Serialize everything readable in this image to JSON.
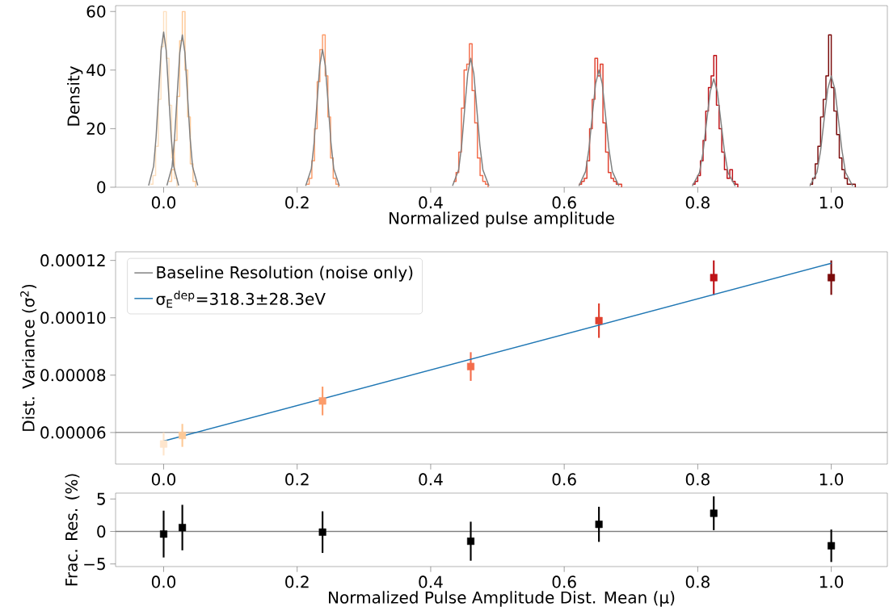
{
  "chart_data": [
    {
      "type": "line",
      "ylabel": "Density",
      "xlabel": "Normalized pulse amplitude",
      "xlim": [
        -0.072,
        1.084
      ],
      "ylim": [
        0,
        62
      ],
      "xticks": [
        {
          "value": 0,
          "label": "0.0"
        },
        {
          "value": 0.2,
          "label": "0.2"
        },
        {
          "value": 0.4,
          "label": "0.4"
        },
        {
          "value": 0.6,
          "label": "0.6"
        },
        {
          "value": 0.8,
          "label": "0.8"
        },
        {
          "value": 1.0,
          "label": "1.0"
        }
      ],
      "yticks": [
        0,
        20,
        40,
        60
      ],
      "series": [
        {
          "type": "step",
          "color": "#fde0c0",
          "x": [
            -0.02,
            -0.016,
            -0.012,
            -0.008,
            -0.004,
            0.0,
            0.004,
            0.008,
            0.012,
            0.016,
            0.02
          ],
          "values": [
            1,
            4,
            14,
            30,
            48,
            60,
            44,
            28,
            10,
            3,
            0
          ]
        },
        {
          "type": "step",
          "color": "#fdc997",
          "x": [
            0.008,
            0.012,
            0.016,
            0.02,
            0.024,
            0.028,
            0.032,
            0.036,
            0.04,
            0.044,
            0.048
          ],
          "values": [
            2,
            6,
            16,
            31,
            50,
            60,
            40,
            24,
            8,
            2,
            0
          ]
        },
        {
          "type": "step",
          "color": "#fc9d6b",
          "x": [
            0.214,
            0.218,
            0.222,
            0.226,
            0.23,
            0.234,
            0.238,
            0.242,
            0.246,
            0.25,
            0.254,
            0.258,
            0.262
          ],
          "values": [
            1,
            3,
            9,
            20,
            36,
            47,
            52,
            38,
            24,
            10,
            3,
            1,
            0
          ]
        },
        {
          "type": "step",
          "color": "#f46d4b",
          "x": [
            0.434,
            0.438,
            0.442,
            0.446,
            0.45,
            0.454,
            0.458,
            0.462,
            0.466,
            0.47,
            0.474,
            0.478,
            0.482,
            0.486
          ],
          "values": [
            2,
            5,
            12,
            27,
            40,
            42,
            49,
            33,
            22,
            10,
            4,
            2,
            1,
            0
          ]
        },
        {
          "type": "step",
          "color": "#e0402e",
          "x": [
            0.622,
            0.626,
            0.63,
            0.634,
            0.638,
            0.642,
            0.646,
            0.65,
            0.654,
            0.658,
            0.662,
            0.666,
            0.67,
            0.674,
            0.678,
            0.682,
            0.686
          ],
          "values": [
            1,
            2,
            3,
            9,
            20,
            30,
            44,
            38,
            42,
            22,
            12,
            5,
            3,
            2,
            1,
            1,
            0
          ]
        },
        {
          "type": "step",
          "color": "#bf1318",
          "x": [
            0.792,
            0.796,
            0.8,
            0.804,
            0.808,
            0.812,
            0.816,
            0.82,
            0.824,
            0.828,
            0.832,
            0.836,
            0.84,
            0.844,
            0.848,
            0.852,
            0.856,
            0.86
          ],
          "values": [
            1,
            2,
            4,
            9,
            16,
            26,
            34,
            38,
            45,
            28,
            20,
            12,
            6,
            3,
            6,
            2,
            1,
            0
          ]
        },
        {
          "type": "step",
          "color": "#7a0a0a",
          "x": [
            0.968,
            0.972,
            0.976,
            0.98,
            0.984,
            0.988,
            0.992,
            0.996,
            1.0,
            1.004,
            1.008,
            1.012,
            1.016,
            1.02,
            1.024,
            1.028,
            1.032,
            1.036
          ],
          "values": [
            1,
            3,
            8,
            14,
            24,
            30,
            38,
            52,
            34,
            26,
            18,
            10,
            6,
            3,
            1,
            1,
            1,
            0
          ]
        },
        {
          "color": "#7f7f7f",
          "x": [
            -0.0225,
            -0.015,
            -0.0113,
            -0.0075,
            -0.0038,
            0.0,
            0.0038,
            0.0075,
            0.0113,
            0.015,
            0.0225
          ],
          "values": [
            0.6,
            7.2,
            17.2,
            32.2,
            46.7,
            53,
            46.7,
            32.2,
            17.2,
            7.2,
            0.6
          ]
        },
        {
          "color": "#7f7f7f",
          "x": [
            0.0049,
            0.0126,
            0.0164,
            0.0203,
            0.0242,
            0.028,
            0.0319,
            0.0357,
            0.0396,
            0.0434,
            0.0511
          ],
          "values": [
            0.6,
            7,
            16.9,
            31.6,
            45.9,
            52,
            45.9,
            31.6,
            16.9,
            7,
            0.6
          ]
        },
        {
          "color": "#7f7f7f",
          "x": [
            0.2128,
            0.2212,
            0.2254,
            0.2296,
            0.2338,
            0.238,
            0.2422,
            0.2464,
            0.2506,
            0.2548,
            0.2632
          ],
          "values": [
            0.5,
            6.3,
            15.3,
            28.5,
            41.5,
            47,
            41.5,
            28.5,
            15.3,
            6.3,
            0.5
          ]
        },
        {
          "color": "#7f7f7f",
          "x": [
            0.4327,
            0.4418,
            0.4464,
            0.4509,
            0.4555,
            0.46,
            0.4646,
            0.4691,
            0.4737,
            0.4782,
            0.4873
          ],
          "values": [
            0.5,
            5.9,
            14.3,
            26.7,
            38.8,
            44,
            38.8,
            26.7,
            14.3,
            5.9,
            0.5
          ]
        },
        {
          "color": "#7f7f7f",
          "x": [
            0.622,
            0.632,
            0.637,
            0.642,
            0.647,
            0.652,
            0.657,
            0.662,
            0.667,
            0.672,
            0.682
          ],
          "values": [
            0.4,
            5.4,
            13,
            24.3,
            35.3,
            40,
            35.3,
            24.3,
            13,
            5.4,
            0.4
          ]
        },
        {
          "color": "#7f7f7f",
          "x": [
            0.7919,
            0.8026,
            0.808,
            0.8133,
            0.8187,
            0.824,
            0.8294,
            0.8347,
            0.8401,
            0.8454,
            0.8561
          ],
          "values": [
            0.4,
            5,
            12,
            22.5,
            32.6,
            37,
            32.6,
            22.5,
            12,
            5,
            0.4
          ]
        },
        {
          "color": "#7f7f7f",
          "x": [
            0.9679,
            0.9786,
            0.984,
            0.9893,
            0.9947,
            1.0,
            1.0054,
            1.0107,
            1.0161,
            1.0214,
            1.0321
          ],
          "values": [
            0.4,
            5.1,
            12.4,
            23.1,
            33.5,
            38,
            33.5,
            23.1,
            12.4,
            5.1,
            0.4
          ]
        }
      ]
    },
    {
      "type": "scatter",
      "ylabel": "Dist. Variance (σ$^{2}$)",
      "legend": "top left",
      "x": [
        0,
        0.028,
        0.238,
        0.46,
        0.652,
        0.824,
        1.0
      ],
      "xlim": [
        -0.072,
        1.084
      ],
      "ylim": [
        4.9e-05,
        0.000123
      ],
      "xticks": [
        {
          "value": 0,
          "label": "0.0"
        },
        {
          "value": 0.2,
          "label": "0.2"
        },
        {
          "value": 0.4,
          "label": "0.4"
        },
        {
          "value": 0.6,
          "label": "0.6"
        },
        {
          "value": 0.8,
          "label": "0.8"
        },
        {
          "value": 1.0,
          "label": "1.0"
        }
      ],
      "yticks": [
        {
          "value": 6e-05,
          "label": "0.00006"
        },
        {
          "value": 8e-05,
          "label": "0.00008"
        },
        {
          "value": 0.0001,
          "label": "0.00010"
        },
        {
          "value": 0.00012,
          "label": "0.00012"
        }
      ],
      "ref_lines": [
        {
          "axis": "y",
          "value": 6e-05,
          "label": "Baseline Resolution (noise only)",
          "color": "#7f7f7f"
        }
      ],
      "series": [
        {
          "marker": "square",
          "colors": [
            "#fee5cc",
            "#fdc997",
            "#fc9d6b",
            "#f46d4b",
            "#e0402e",
            "#bf1318",
            "#7a0a0a"
          ],
          "values": [
            5.6e-05,
            5.9e-05,
            7.1e-05,
            8.3e-05,
            9.9e-05,
            0.000114,
            0.000114
          ],
          "errors": [
            4e-06,
            4e-06,
            5e-06,
            5e-06,
            6e-06,
            6e-06,
            6e-06
          ]
        },
        {
          "type": "line",
          "name": "σ$_{E}$$^{dep}$=318.3±28.3eV",
          "color": "#1f77b4",
          "x": [
            0,
            1.0
          ],
          "values": [
            5.7e-05,
            0.000119
          ]
        }
      ]
    },
    {
      "type": "scatter",
      "ylabel": "Frac. Res. (%)",
      "xlabel": "Normalized Pulse Amplitude Dist. Mean (μ)",
      "x": [
        0,
        0.028,
        0.238,
        0.46,
        0.652,
        0.824,
        1.0
      ],
      "xlim": [
        -0.072,
        1.084
      ],
      "ylim": [
        -5.4,
        5.9
      ],
      "xticks": [
        {
          "value": 0,
          "label": "0.0"
        },
        {
          "value": 0.2,
          "label": "0.2"
        },
        {
          "value": 0.4,
          "label": "0.4"
        },
        {
          "value": 0.6,
          "label": "0.6"
        },
        {
          "value": 0.8,
          "label": "0.8"
        },
        {
          "value": 1.0,
          "label": "1.0"
        }
      ],
      "yticks": [
        {
          "value": -5,
          "label": "−5"
        },
        0,
        5
      ],
      "ref_lines": [
        {
          "axis": "y",
          "value": 0,
          "color": "#7f7f7f"
        }
      ],
      "series": [
        {
          "marker": "square",
          "color": "#000000",
          "values": [
            -0.4,
            0.6,
            -0.1,
            -1.5,
            1.1,
            2.8,
            -2.2
          ],
          "errors": [
            3.6,
            3.5,
            3.2,
            3.0,
            2.7,
            2.6,
            2.5
          ]
        }
      ]
    }
  ]
}
